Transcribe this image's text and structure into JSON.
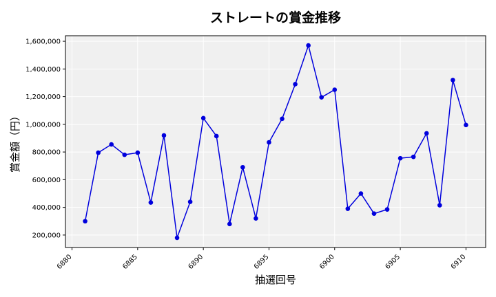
{
  "chart_data": {
    "type": "line",
    "title": "ストレートの賞金推移",
    "xlabel": "抽選回号",
    "ylabel": "賞金額（円）",
    "xlim": [
      6879.5,
      6911.5
    ],
    "ylim": [
      110000,
      1640000
    ],
    "xticks": [
      6880,
      6885,
      6890,
      6895,
      6900,
      6905,
      6910
    ],
    "yticks": [
      200000,
      400000,
      600000,
      800000,
      1000000,
      1200000,
      1400000,
      1600000
    ],
    "ytick_labels": [
      "200,000",
      "400,000",
      "600,000",
      "800,000",
      "1,000,000",
      "1,200,000",
      "1,400,000",
      "1,600,000"
    ],
    "grid": true,
    "series_color": "#0000dd",
    "plot_background": "#f0f0f0",
    "x": [
      6881,
      6882,
      6883,
      6884,
      6885,
      6886,
      6887,
      6888,
      6889,
      6890,
      6891,
      6892,
      6893,
      6894,
      6895,
      6896,
      6897,
      6898,
      6899,
      6900,
      6901,
      6902,
      6903,
      6904,
      6905,
      6906,
      6907,
      6908,
      6909,
      6910
    ],
    "values": [
      300000,
      795000,
      855000,
      780000,
      795000,
      435000,
      920000,
      180000,
      440000,
      1045000,
      915000,
      280000,
      690000,
      320000,
      870000,
      1040000,
      1290000,
      1570000,
      1195000,
      1250000,
      390000,
      500000,
      355000,
      385000,
      755000,
      765000,
      935000,
      415000,
      1320000,
      995000
    ]
  }
}
